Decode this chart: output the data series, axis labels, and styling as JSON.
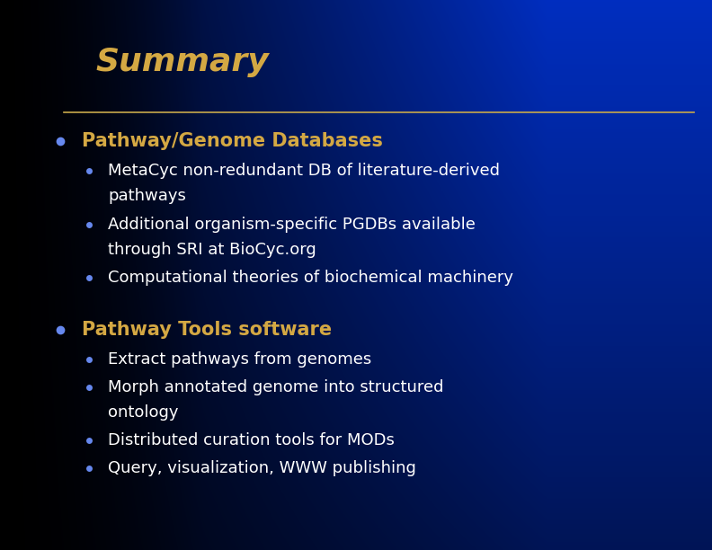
{
  "title": "Summary",
  "title_color": "#D4A843",
  "title_fontsize": 26,
  "separator_color": "#C8A84B",
  "bullet_color_large": "#6688EE",
  "bullet_color_small": "#6688EE",
  "heading_color": "#D4A843",
  "subtext_color": "#FFFFFF",
  "heading_fontsize": 15,
  "sub_fontsize": 13,
  "sections": [
    {
      "heading": "Pathway/Genome Databases",
      "sub_items": [
        [
          "MetaCyc non-redundant DB of literature-derived",
          "    pathways"
        ],
        [
          "Additional organism-specific PGDBs available",
          "    through SRI at BioCyc.org"
        ],
        [
          "Computational theories of biochemical machinery"
        ]
      ]
    },
    {
      "heading": "Pathway Tools software",
      "sub_items": [
        [
          "Extract pathways from genomes"
        ],
        [
          "Morph annotated genome into structured",
          "    ontology"
        ],
        [
          "Distributed curation tools for MODs"
        ],
        [
          "Query, visualization, WWW publishing"
        ]
      ]
    }
  ]
}
